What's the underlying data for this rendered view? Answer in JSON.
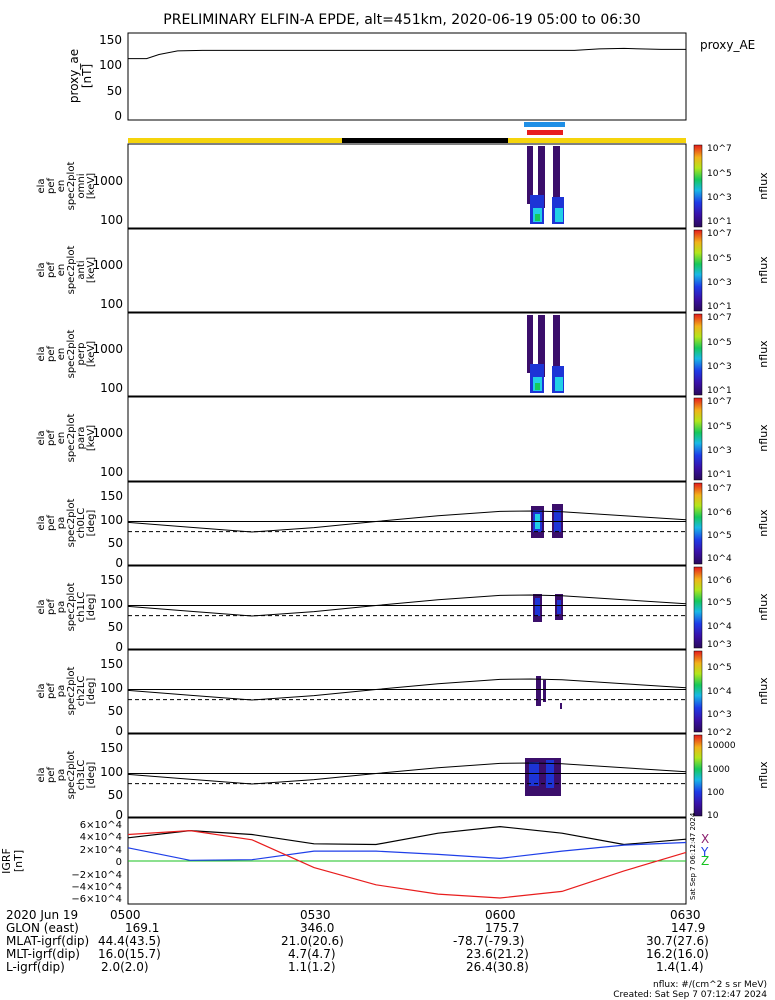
{
  "title": "PRELIMINARY ELFIN-A EPDE, alt=451km, 2020-06-19 05:00 to 06:30",
  "colors": {
    "axis": "#000000",
    "sunlit": "#f5d40c",
    "eclipse": "#000000",
    "science_blue": "#1f8fe6",
    "science_red": "#e81d1d",
    "spec_core": "#3b0e6b",
    "spec_mid": "#1d34d6",
    "spec_hot": "#22d0e6",
    "spec_warm": "#16c95a",
    "grf_x": "#000000",
    "grf_y": "#1f3fe8",
    "grf_z": "#e81d1d",
    "grf_zero": "#18c21f",
    "label_x": "#8b1f6e",
    "label_y": "#1f3fe8",
    "label_z": "#16c21f"
  },
  "time_axis": {
    "start_min": 0,
    "end_min": 90,
    "tick_minutes": [
      0,
      30,
      60,
      90
    ],
    "tick_labels": [
      "0500",
      "0530",
      "0600",
      "0630"
    ]
  },
  "panels": {
    "proxy_ae": {
      "ylabel_lines": [
        "proxy_ae",
        "[nT]"
      ],
      "right_label": "proxy_AE",
      "yticks": [
        "150",
        "100",
        "50",
        "0"
      ]
    },
    "omni": {
      "ylabel_lines": [
        "ela",
        "pef",
        "en",
        "spec2plot",
        "omni",
        "[keV]"
      ],
      "yticks": [
        "1000",
        "100"
      ],
      "cb_label": "nflux",
      "cb_ticks": [
        "10^7",
        "10^6",
        "10^5",
        "10^4",
        "10^3",
        "10^2",
        "10^1"
      ]
    },
    "anti": {
      "ylabel_lines": [
        "ela",
        "pef",
        "en",
        "spec2plot",
        "anti",
        "[keV]"
      ],
      "yticks": [
        "1000",
        "100"
      ],
      "cb_label": "nflux",
      "cb_ticks": [
        "10^7",
        "10^6",
        "10^5",
        "10^4",
        "10^3",
        "10^2",
        "10^1"
      ]
    },
    "perp": {
      "ylabel_lines": [
        "ela",
        "pef",
        "en",
        "spec2plot",
        "perp",
        "[keV]"
      ],
      "yticks": [
        "1000",
        "100"
      ],
      "cb_label": "nflux",
      "cb_ticks": [
        "10^7",
        "10^6",
        "10^5",
        "10^4",
        "10^3",
        "10^2",
        "10^1"
      ]
    },
    "para": {
      "ylabel_lines": [
        "ela",
        "pef",
        "en",
        "spec2plot",
        "para",
        "[keV]"
      ],
      "yticks": [
        "1000",
        "100"
      ],
      "cb_label": "nflux",
      "cb_ticks": [
        "10^7",
        "10^6",
        "10^5",
        "10^4",
        "10^3",
        "10^2",
        "10^1"
      ]
    },
    "ch0": {
      "ylabel_lines": [
        "ela",
        "pef",
        "pa",
        "spec2plot",
        "ch0LC",
        "[deg]"
      ],
      "yticks": [
        "150",
        "100",
        "50",
        "0"
      ],
      "cb_label": "nflux",
      "cb_ticks": [
        "10^7",
        "10^6",
        "10^5",
        "10^4"
      ]
    },
    "ch1": {
      "ylabel_lines": [
        "ela",
        "pef",
        "pa",
        "spec2plot",
        "ch1LC",
        "[deg]"
      ],
      "yticks": [
        "150",
        "100",
        "50",
        "0"
      ],
      "cb_label": "nflux",
      "cb_ticks": [
        "10^6",
        "10^5",
        "10^4",
        "10^3"
      ]
    },
    "ch2": {
      "ylabel_lines": [
        "ela",
        "pef",
        "pa",
        "spec2plot",
        "ch2LC",
        "[deg]"
      ],
      "yticks": [
        "150",
        "100",
        "50",
        "0"
      ],
      "cb_label": "nflux",
      "cb_ticks": [
        "10^5",
        "10^4",
        "10^3",
        "10^2"
      ]
    },
    "ch3": {
      "ylabel_lines": [
        "ela",
        "pef",
        "pa",
        "spec2plot",
        "ch3LC",
        "[deg]"
      ],
      "yticks": [
        "150",
        "100",
        "50",
        "0"
      ],
      "cb_label": "nflux",
      "cb_ticks": [
        "10000",
        "1000",
        "100",
        "10"
      ]
    },
    "grf": {
      "ylabel_lines": [
        "IGRF",
        "[nT]"
      ],
      "yticks": [
        "6×10^4",
        "4×10^4",
        "2×10^4",
        "0",
        "−2×10^4",
        "−4×10^4",
        "−6×10^4"
      ],
      "right_labels": [
        "X",
        "Y",
        "Z"
      ],
      "stamp": "Sat Sep  7 06:12:47 2024"
    }
  },
  "chart_data": [
    {
      "type": "line",
      "title": "proxy_ae",
      "xlabel": "UT (min after 05:00)",
      "ylabel": "proxy_ae [nT]",
      "ylim": [
        0,
        160
      ],
      "x": [
        0,
        3,
        5,
        8,
        12,
        20,
        40,
        60,
        72,
        76,
        80,
        86,
        90
      ],
      "values": [
        110,
        110,
        118,
        125,
        126,
        126,
        126,
        126,
        126,
        129,
        130,
        128,
        128
      ]
    },
    {
      "type": "line",
      "title": "Loss-cone angles (ch0-ch3 LC panels)",
      "xlabel": "UT (min after 05:00)",
      "ylabel": "[deg]",
      "ylim": [
        0,
        180
      ],
      "x": [
        0,
        10,
        20,
        30,
        40,
        50,
        60,
        65,
        70,
        80,
        90
      ],
      "series": [
        {
          "name": "loss cone (solid)",
          "values": [
            88,
            77,
            66,
            76,
            90,
            103,
            113,
            114,
            112,
            103,
            94
          ]
        },
        {
          "name": "anti-loss cone (dashed)",
          "values": [
            67,
            67,
            67,
            67,
            67,
            67,
            67,
            67,
            67,
            67,
            67
          ]
        },
        {
          "name": "90 deg reference",
          "values": [
            90,
            90,
            90,
            90,
            90,
            90,
            90,
            90,
            90,
            90,
            90
          ]
        }
      ]
    },
    {
      "type": "line",
      "title": "IGRF field components",
      "xlabel": "UT (min after 05:00)",
      "ylabel": "IGRF [nT]",
      "ylim": [
        -65000,
        65000
      ],
      "x": [
        0,
        10,
        20,
        30,
        40,
        50,
        60,
        70,
        80,
        90
      ],
      "series": [
        {
          "name": "X",
          "values": [
            35000,
            46000,
            40000,
            26000,
            25000,
            42000,
            52000,
            42000,
            25000,
            33000
          ]
        },
        {
          "name": "Y",
          "values": [
            20000,
            1000,
            2000,
            15000,
            15000,
            10000,
            4000,
            15000,
            24000,
            28000
          ]
        },
        {
          "name": "Z",
          "values": [
            40000,
            46000,
            32000,
            -10000,
            -36000,
            -50000,
            -56000,
            -46000,
            -15000,
            13000
          ]
        }
      ]
    }
  ],
  "ephemeris": {
    "row_labels": [
      "2020 Jun 19",
      "GLON (east)",
      "MLAT-igrf(dip)",
      "MLT-igrf(dip)",
      "L-igrf(dip)"
    ],
    "columns": [
      {
        "time": "0500",
        "glon": "169.1",
        "mlat": "44.4(43.5)",
        "mlt": "16.0(15.7)",
        "l": "2.0(2.0)"
      },
      {
        "time": "0530",
        "glon": "346.0",
        "mlat": "21.0(20.6)",
        "mlt": "4.7(4.7)",
        "l": "1.1(1.2)"
      },
      {
        "time": "0600",
        "glon": "175.7",
        "mlat": "-78.7(-79.3)",
        "mlt": "23.6(21.2)",
        "l": "26.4(30.8)"
      },
      {
        "time": "0630",
        "glon": "147.9",
        "mlat": "30.7(27.6)",
        "mlt": "16.2(16.0)",
        "l": "1.4(1.4)"
      }
    ]
  },
  "footer": {
    "units": "nflux: #/(cm^2 s sr MeV)",
    "created": "Created: Sat Sep  7 07:12:47 2024"
  }
}
